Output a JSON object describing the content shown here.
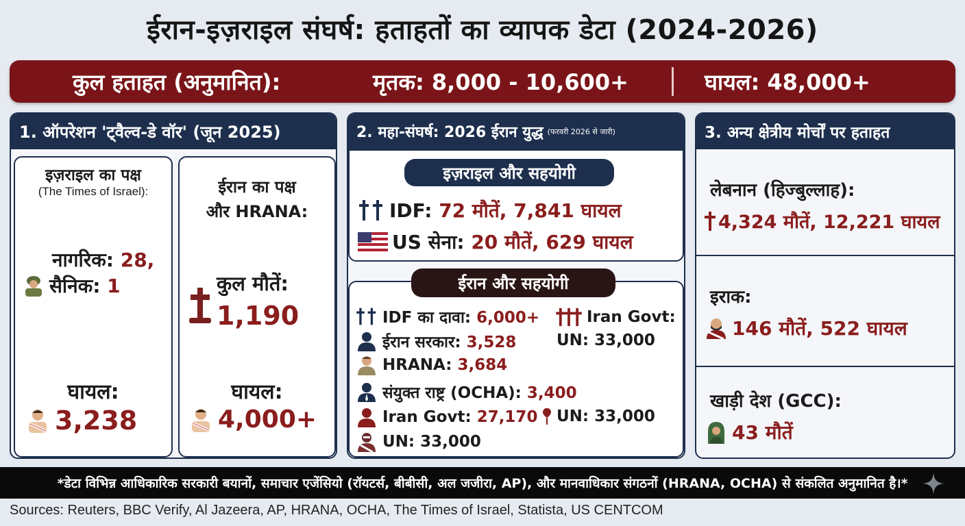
{
  "title": "ईरान-इज़राइल संघर्ष: हताहतों का व्यापक डेटा (2024-2026)",
  "banner": {
    "total_label": "कुल हताहत (अनुमानित):",
    "dead": "मृतक: 8,000 - 10,600+",
    "injured": "घायल: 48,000+"
  },
  "panel1": {
    "heading": "1. ऑपरेशन 'ट्वैल्व-डे वॉर' (जून 2025)",
    "israel": {
      "title": "इज़राइल का पक्ष",
      "source": "(The Times of Israel):",
      "civilians_label": "नागरिक:",
      "civilians_value": "28,",
      "soldiers_label": "सैनिक:",
      "soldiers_value": "1",
      "injured_label": "घायल:",
      "injured_value": "3,238"
    },
    "iran": {
      "title_line1": "ईरान का पक्ष",
      "title_line2": "और HRANA:",
      "deaths_label": "कुल मौतें:",
      "deaths_value": "1,190",
      "injured_label": "घायल:",
      "injured_value": "4,000+"
    }
  },
  "panel2": {
    "heading": "2. महा-संघर्ष: 2026 ईरान युद्ध",
    "heading_note": "(फरवरी 2026 से जारी)",
    "israel_pill": "इज़राइल और सहयोगी",
    "idf_label": "IDF:",
    "idf_deaths": "72 मौतें,",
    "idf_injured": "7,841 घायल",
    "us_label": "US सेना:",
    "us_deaths": "20 मौतें,",
    "us_injured": "629 घायल",
    "iran_pill": "ईरान और सहयोगी",
    "idf_claim_label": "IDF का दावा:",
    "idf_claim_value": "6,000+",
    "iran_govt_label_right": "Iran Govt:",
    "un_right_top": "UN: 33,000",
    "iran_gov_label": "ईरान सरकार:",
    "iran_gov_value": "3,528",
    "hrana_label": "HRANA:",
    "hrana_value": "3,684",
    "ocha_label": "संयुक्त राष्ट्र (OCHA):",
    "ocha_value": "3,400",
    "iran_govt2_label": "Iran Govt:",
    "iran_govt2_value": "27,170",
    "un_mid": "UN: 33,000",
    "un_bottom": "UN: 33,000"
  },
  "panel3": {
    "heading": "3. अन्य क्षेत्रीय मोर्चों पर हताहत",
    "lebanon_title": "लेबनान (हिज्बुल्लाह):",
    "lebanon_deaths": "4,324 मौतें,",
    "lebanon_injured": "12,221 घायल",
    "iraq_title": "इराक:",
    "iraq_deaths": "146 मौतें,",
    "iraq_injured": "522 घायल",
    "gcc_title": "खाड़ी देश (GCC):",
    "gcc_deaths": "43 मौतें"
  },
  "footnote": "*डेटा विभिन्न आधिकारिक सरकारी बयानों, समाचार एजेंसियो (रॉयटर्स, बीबीसी, अल जजीरा, AP), और मानवाधिकार संगठनों (HRANA, OCHA) से संकलित अनुमानित है।*",
  "sources": "Sources: Reuters, BBC Verify, Al Jazeera, AP, HRANA, OCHA, The Times of Israel, Statista, US CENTCOM",
  "icons": [
    "soldier-icon",
    "injured-person-icon",
    "grave-cross-icon",
    "double-cross-icon",
    "us-flag-icon",
    "triple-cross-icon",
    "person-silhouette-icon",
    "cross-icon",
    "masked-person-icon",
    "gulf-person-icon",
    "sparkle-icon"
  ],
  "colors": {
    "accent_red": "#7a1418",
    "navy": "#1d2f4d",
    "value_red": "#8a1d1d"
  }
}
